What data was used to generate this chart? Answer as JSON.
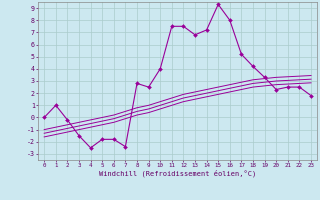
{
  "xlabel": "Windchill (Refroidissement éolien,°C)",
  "background_color": "#cce8f0",
  "grid_color": "#aacccc",
  "line_color": "#990099",
  "hours": [
    0,
    1,
    2,
    3,
    4,
    5,
    6,
    7,
    8,
    9,
    10,
    11,
    12,
    13,
    14,
    15,
    16,
    17,
    18,
    19,
    20,
    21,
    22,
    23
  ],
  "main_line": [
    0,
    1,
    -0.2,
    -1.5,
    -2.5,
    -1.8,
    -1.8,
    -2.4,
    2.8,
    2.5,
    4.0,
    7.5,
    7.5,
    6.8,
    7.2,
    9.3,
    8.0,
    5.2,
    4.2,
    3.3,
    2.3,
    2.5,
    2.5,
    1.8
  ],
  "trend_upper": [
    -1.0,
    -0.8,
    -0.6,
    -0.4,
    -0.2,
    0.0,
    0.2,
    0.5,
    0.8,
    1.0,
    1.3,
    1.6,
    1.9,
    2.1,
    2.3,
    2.5,
    2.7,
    2.9,
    3.1,
    3.2,
    3.3,
    3.35,
    3.4,
    3.45
  ],
  "trend_mid": [
    -1.3,
    -1.1,
    -0.9,
    -0.7,
    -0.5,
    -0.3,
    -0.1,
    0.2,
    0.5,
    0.7,
    1.0,
    1.3,
    1.6,
    1.8,
    2.0,
    2.2,
    2.4,
    2.6,
    2.8,
    2.9,
    3.0,
    3.05,
    3.1,
    3.15
  ],
  "trend_lower": [
    -1.6,
    -1.4,
    -1.2,
    -1.0,
    -0.8,
    -0.6,
    -0.4,
    -0.1,
    0.2,
    0.4,
    0.7,
    1.0,
    1.3,
    1.5,
    1.7,
    1.9,
    2.1,
    2.3,
    2.5,
    2.6,
    2.7,
    2.75,
    2.8,
    2.85
  ],
  "ylim": [
    -3.5,
    9.5
  ],
  "xlim": [
    -0.5,
    23.5
  ],
  "yticks": [
    -3,
    -2,
    -1,
    0,
    1,
    2,
    3,
    4,
    5,
    6,
    7,
    8,
    9
  ],
  "xticks": [
    0,
    1,
    2,
    3,
    4,
    5,
    6,
    7,
    8,
    9,
    10,
    11,
    12,
    13,
    14,
    15,
    16,
    17,
    18,
    19,
    20,
    21,
    22,
    23
  ]
}
